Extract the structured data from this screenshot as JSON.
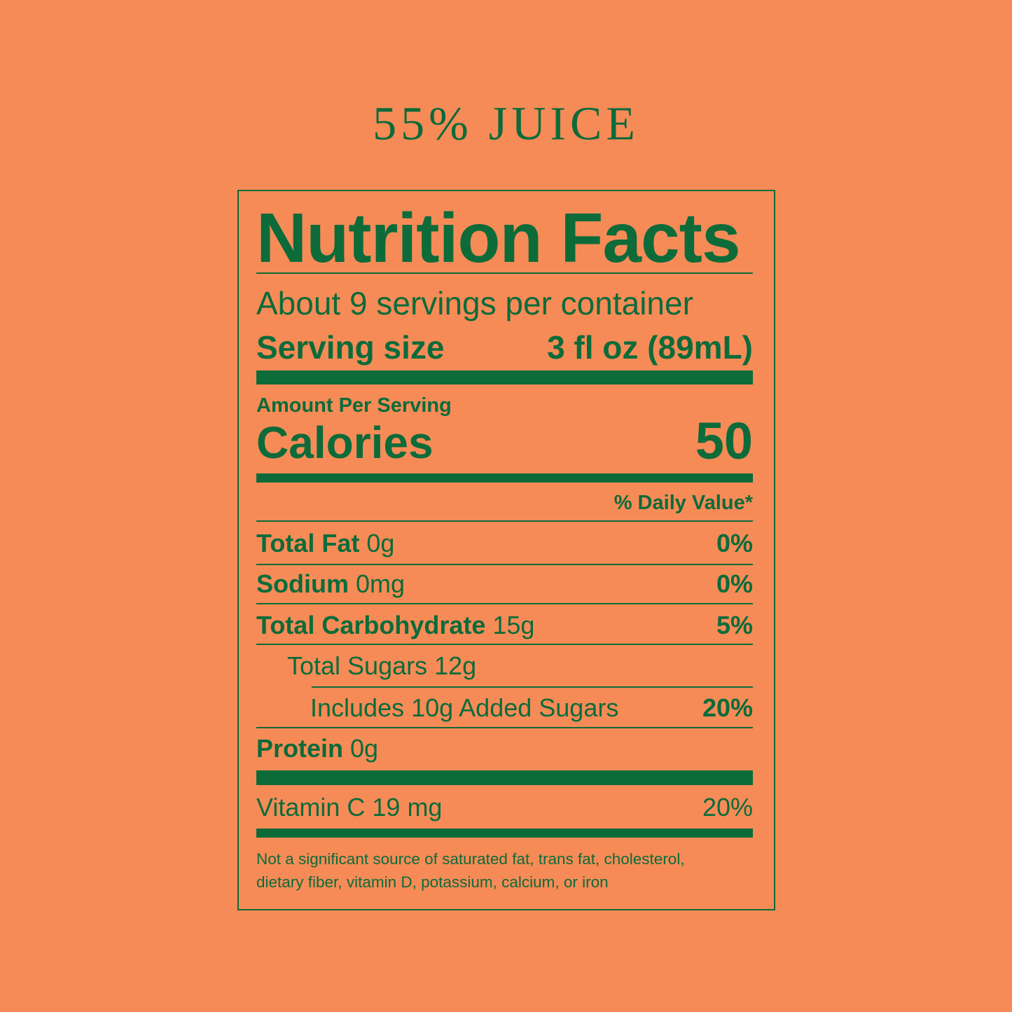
{
  "header": {
    "title": "55% JUICE"
  },
  "label": {
    "heading": "Nutrition Facts",
    "servings_per_container": "About 9 servings per container",
    "serving_size_label": "Serving size",
    "serving_size_value": "3 fl oz (89mL)",
    "amount_per_serving": "Amount Per Serving",
    "calories_label": "Calories",
    "calories_value": "50",
    "daily_value_header": "% Daily Value*",
    "nutrients": [
      {
        "name": "Total Fat",
        "amount": "0g",
        "dv": "0%"
      },
      {
        "name": "Sodium",
        "amount": "0mg",
        "dv": "0%"
      },
      {
        "name": "Total Carbohydrate",
        "amount": "15g",
        "dv": "5%"
      },
      {
        "name": "Total Sugars 12g"
      },
      {
        "name": "Includes 10g Added Sugars",
        "dv": "20%"
      },
      {
        "name": "Protein",
        "amount": "0g"
      }
    ],
    "vitamin": {
      "name": "Vitamin C 19 mg",
      "dv": "20%"
    },
    "footnote_line1": "Not a significant source of saturated fat, trans fat, cholesterol,",
    "footnote_line2": "dietary fiber, vitamin D, potassium, calcium, or iron"
  },
  "colors": {
    "background": "#F68B57",
    "ink": "#0D6B3A"
  }
}
